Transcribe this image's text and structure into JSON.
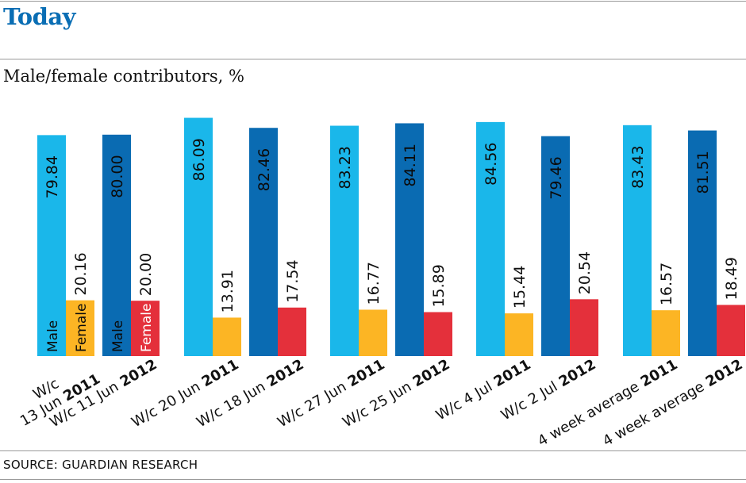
{
  "header": {
    "title": "Today",
    "title_color": "#0a6eb4"
  },
  "source": "SOURCE: GUARDIAN RESEARCH",
  "colors": {
    "male_2011": "#1ab7ea",
    "female_2011": "#fcb524",
    "male_2012": "#0a6bb2",
    "female_2012": "#e4303b"
  },
  "chart_data": {
    "type": "bar",
    "title": "Male/female contributors, %",
    "xlabel": "",
    "ylabel": "",
    "ylim": [
      0,
      100
    ],
    "grid": false,
    "series_labels": [
      "Male",
      "Female"
    ],
    "groups": [
      {
        "label_prefix": "W/c",
        "label_line2": "13 Jun",
        "year": "2011",
        "male": 79.84,
        "female": 20.16,
        "male_display": "79.84",
        "female_display": "20.16",
        "edition": "2011"
      },
      {
        "label_prefix": "W/c 11 Jun",
        "label_line2": "",
        "year": "2012",
        "male": 80.0,
        "female": 20.0,
        "male_display": "80.00",
        "female_display": "20.00",
        "edition": "2012"
      },
      {
        "label_prefix": "W/c 20 Jun",
        "label_line2": "",
        "year": "2011",
        "male": 86.09,
        "female": 13.91,
        "male_display": "86.09",
        "female_display": "13.91",
        "edition": "2011"
      },
      {
        "label_prefix": "W/c 18 Jun",
        "label_line2": "",
        "year": "2012",
        "male": 82.46,
        "female": 17.54,
        "male_display": "82.46",
        "female_display": "17.54",
        "edition": "2012"
      },
      {
        "label_prefix": "W/c 27 Jun",
        "label_line2": "",
        "year": "2011",
        "male": 83.23,
        "female": 16.77,
        "male_display": "83.23",
        "female_display": "16.77",
        "edition": "2011"
      },
      {
        "label_prefix": "W/c 25 Jun",
        "label_line2": "",
        "year": "2012",
        "male": 84.11,
        "female": 15.89,
        "male_display": "84.11",
        "female_display": "15.89",
        "edition": "2012"
      },
      {
        "label_prefix": "W/c 4 Jul",
        "label_line2": "",
        "year": "2011",
        "male": 84.56,
        "female": 15.44,
        "male_display": "84.56",
        "female_display": "15.44",
        "edition": "2011"
      },
      {
        "label_prefix": "W/c 2 Jul",
        "label_line2": "",
        "year": "2012",
        "male": 79.46,
        "female": 20.54,
        "male_display": "79.46",
        "female_display": "20.54",
        "edition": "2012"
      },
      {
        "label_prefix": "4 week average",
        "label_line2": "",
        "year": "2011",
        "male": 83.43,
        "female": 16.57,
        "male_display": "83.43",
        "female_display": "16.57",
        "edition": "2011"
      },
      {
        "label_prefix": "4 week average",
        "label_line2": "",
        "year": "2012",
        "male": 81.51,
        "female": 18.49,
        "male_display": "81.51",
        "female_display": "18.49",
        "edition": "2012"
      }
    ]
  }
}
